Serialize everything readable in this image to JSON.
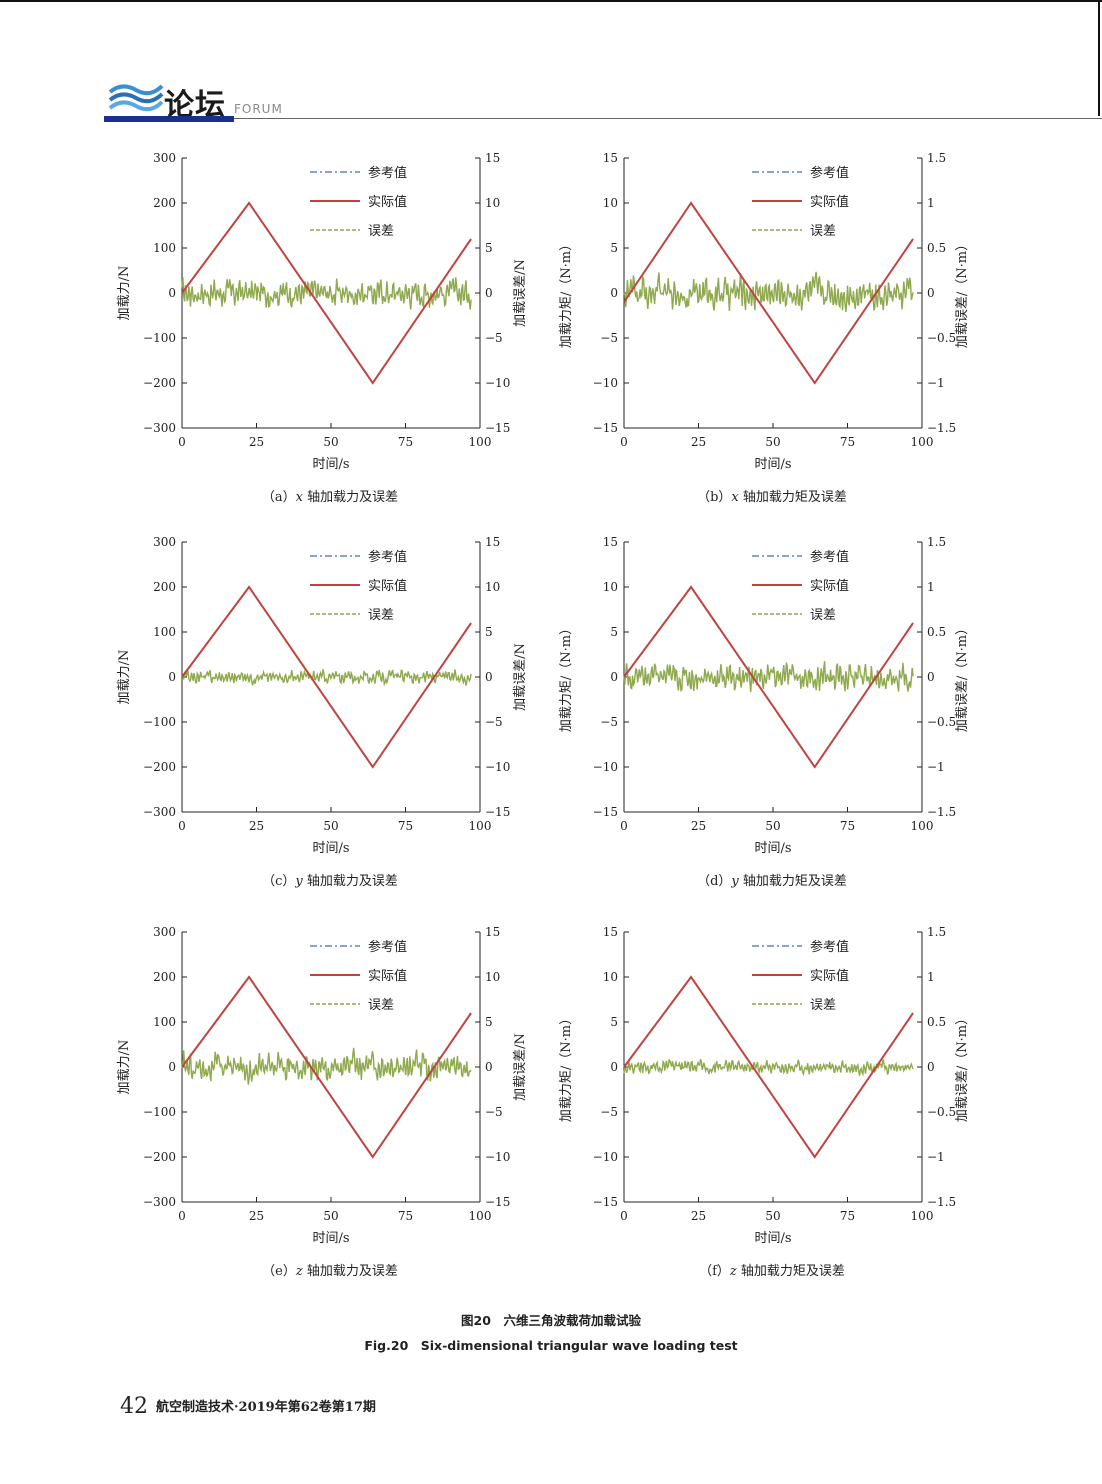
{
  "header": {
    "section_title": "论坛",
    "section_en": "FORUM",
    "bar_color": "#1b2f8c"
  },
  "colors": {
    "reference": "#3b6fb3",
    "actual": "#c0433f",
    "error": "#8fa94e"
  },
  "figures": [
    {
      "id": "a",
      "caption_open": "（a）",
      "axis": "x",
      "caption_rest": " 轴加载力及误差",
      "units": "force"
    },
    {
      "id": "b",
      "caption_open": "（b）",
      "axis": "x",
      "caption_rest": " 轴加载力矩及误差",
      "units": "moment"
    },
    {
      "id": "c",
      "caption_open": "（c）",
      "axis": "y",
      "caption_rest": " 轴加载力及误差",
      "units": "force"
    },
    {
      "id": "d",
      "caption_open": "（d）",
      "axis": "y",
      "caption_rest": " 轴加载力矩及误差",
      "units": "moment"
    },
    {
      "id": "e",
      "caption_open": "（e）",
      "axis": "z",
      "caption_rest": " 轴加载力及误差",
      "units": "force"
    },
    {
      "id": "f",
      "caption_open": "（f）",
      "axis": "z",
      "caption_rest": " 轴加载力矩及误差",
      "units": "moment"
    }
  ],
  "chart_common": {
    "legend": [
      "参考值",
      "实际值",
      "误差"
    ],
    "legend_placement": "top-center",
    "xlabel": "时间/s",
    "xlim": [
      0,
      100
    ],
    "xticks": [
      0,
      25,
      50,
      75,
      100
    ],
    "force": {
      "ylabel_left": "加载力/N",
      "ylabel_right": "加载误差/N",
      "ylim": [
        -300,
        300
      ],
      "yticks": [
        -300,
        -200,
        -100,
        0,
        100,
        200,
        300
      ],
      "ylim_right": [
        -15,
        15
      ],
      "yticks_right": [
        -15,
        -10,
        -5,
        0,
        5,
        10,
        15
      ]
    },
    "moment": {
      "ylabel_left": "加载力矩/（N·m）",
      "ylabel_right": "加载误差/（N·m）",
      "ylim": [
        -15,
        15
      ],
      "yticks": [
        -15,
        -10,
        -5,
        0,
        5,
        10,
        15
      ],
      "ylim_right": [
        -1.5,
        1.5
      ],
      "yticks_right": [
        -1.5,
        -1,
        -0.5,
        0,
        0.5,
        1,
        1.5
      ]
    }
  },
  "chart_data": [
    {
      "type": "line",
      "subplot": "a",
      "series": [
        {
          "name": "参考值",
          "x": [
            0,
            22.5,
            64,
            97
          ],
          "y": [
            0,
            200,
            -200,
            120
          ]
        },
        {
          "name": "实际值",
          "x": [
            0,
            22.5,
            64,
            97
          ],
          "y": [
            0,
            200,
            -200,
            120
          ]
        },
        {
          "name": "误差",
          "axis": "right",
          "amplitude": 2.5,
          "x_range": [
            0,
            97
          ]
        }
      ]
    },
    {
      "type": "line",
      "subplot": "b",
      "series": [
        {
          "name": "参考值",
          "x": [
            0,
            22.5,
            64,
            97
          ],
          "y": [
            -1,
            10,
            -10,
            6
          ]
        },
        {
          "name": "实际值",
          "x": [
            0,
            22.5,
            64,
            97
          ],
          "y": [
            -1,
            10,
            -10,
            6
          ]
        },
        {
          "name": "误差",
          "axis": "right",
          "amplitude": 0.3,
          "x_range": [
            0,
            97
          ]
        }
      ]
    },
    {
      "type": "line",
      "subplot": "c",
      "series": [
        {
          "name": "参考值",
          "x": [
            0,
            22.5,
            64,
            97
          ],
          "y": [
            0,
            200,
            -200,
            120
          ]
        },
        {
          "name": "实际值",
          "x": [
            0,
            22.5,
            64,
            97
          ],
          "y": [
            0,
            200,
            -200,
            120
          ]
        },
        {
          "name": "误差",
          "axis": "right",
          "amplitude": 1.2,
          "x_range": [
            0,
            97
          ]
        }
      ]
    },
    {
      "type": "line",
      "subplot": "d",
      "series": [
        {
          "name": "参考值",
          "x": [
            0,
            22.5,
            64,
            97
          ],
          "y": [
            0,
            10,
            -10,
            6
          ]
        },
        {
          "name": "实际值",
          "x": [
            0,
            22.5,
            64,
            97
          ],
          "y": [
            0,
            10,
            -10,
            6
          ]
        },
        {
          "name": "误差",
          "axis": "right",
          "amplitude": 0.25,
          "x_range": [
            0,
            97
          ]
        }
      ]
    },
    {
      "type": "line",
      "subplot": "e",
      "series": [
        {
          "name": "参考值",
          "x": [
            0,
            22.5,
            64,
            97
          ],
          "y": [
            0,
            200,
            -200,
            120
          ]
        },
        {
          "name": "实际值",
          "x": [
            0,
            22.5,
            64,
            97
          ],
          "y": [
            0,
            200,
            -200,
            120
          ]
        },
        {
          "name": "误差",
          "axis": "right",
          "amplitude": 2.5,
          "x_range": [
            0,
            97
          ]
        }
      ]
    },
    {
      "type": "line",
      "subplot": "f",
      "series": [
        {
          "name": "参考值",
          "x": [
            0,
            22.5,
            64,
            97
          ],
          "y": [
            0,
            10,
            -10,
            6
          ]
        },
        {
          "name": "实际值",
          "x": [
            0,
            22.5,
            64,
            97
          ],
          "y": [
            0,
            10,
            -10,
            6
          ]
        },
        {
          "name": "误差",
          "axis": "right",
          "amplitude": 0.12,
          "x_range": [
            0,
            97
          ]
        }
      ]
    }
  ],
  "caption": {
    "cn": "图20　六维三角波载荷加载试验",
    "en": "Fig.20　Six-dimensional triangular wave loading test"
  },
  "footer": {
    "page_number": "42",
    "journal": "航空制造技术·2019年第62卷第17期"
  }
}
